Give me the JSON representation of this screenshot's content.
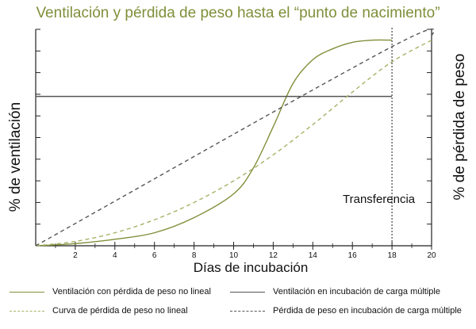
{
  "chart_data": {
    "type": "line",
    "title": "Ventilación y pérdida de peso hasta el “punto de nacimiento”",
    "xlabel": "Días de incubación",
    "ylabel_left": "% de ventilación",
    "ylabel_right": "% de pérdida de peso",
    "xlim": [
      0,
      20
    ],
    "xticks": [
      2,
      4,
      6,
      8,
      10,
      12,
      14,
      16,
      18,
      20
    ],
    "ylim": [
      0,
      100
    ],
    "y_ticks_count": 10,
    "grid": false,
    "legend_position": "bottom",
    "annotation": {
      "text": "Transferencia",
      "x": 18
    },
    "series": [
      {
        "name": "Ventilación con pérdida de peso no lineal",
        "color": "#7f8f3a",
        "dash": "solid",
        "x": [
          0,
          2,
          4,
          6,
          8,
          10,
          11,
          12,
          13,
          14,
          15,
          16,
          17,
          18
        ],
        "y": [
          0,
          1,
          3,
          6,
          13,
          24,
          36,
          55,
          75,
          86,
          91,
          94,
          95,
          95
        ]
      },
      {
        "name": "Ventilación en incubación de carga múltiple",
        "color": "#555555",
        "dash": "solid",
        "x": [
          0,
          18
        ],
        "y": [
          69,
          69
        ]
      },
      {
        "name": "Curva de pérdida de peso no lineal",
        "color": "#a7b266",
        "dash": "dashed",
        "x": [
          0,
          2,
          4,
          6,
          8,
          10,
          12,
          14,
          16,
          18,
          20
        ],
        "y": [
          0,
          2,
          6,
          12,
          20,
          30,
          42,
          56,
          71,
          85,
          95
        ]
      },
      {
        "name": "Pérdida de peso en incubación de carga múltiple",
        "color": "#555555",
        "dash": "dashed",
        "x": [
          0,
          18,
          20
        ],
        "y": [
          0,
          92,
          96
        ]
      }
    ]
  },
  "legend": [
    {
      "label": "Ventilación con pérdida de peso no lineal",
      "color": "#7f8f3a",
      "dash": "solid"
    },
    {
      "label": "Ventilación en incubación de carga múltiple",
      "color": "#555555",
      "dash": "solid"
    },
    {
      "label": "Curva de pérdida de peso no lineal",
      "color": "#a7b266",
      "dash": "dashed"
    },
    {
      "label": "Pérdida de peso en incubación de carga múltiple",
      "color": "#555555",
      "dash": "dashed"
    }
  ]
}
